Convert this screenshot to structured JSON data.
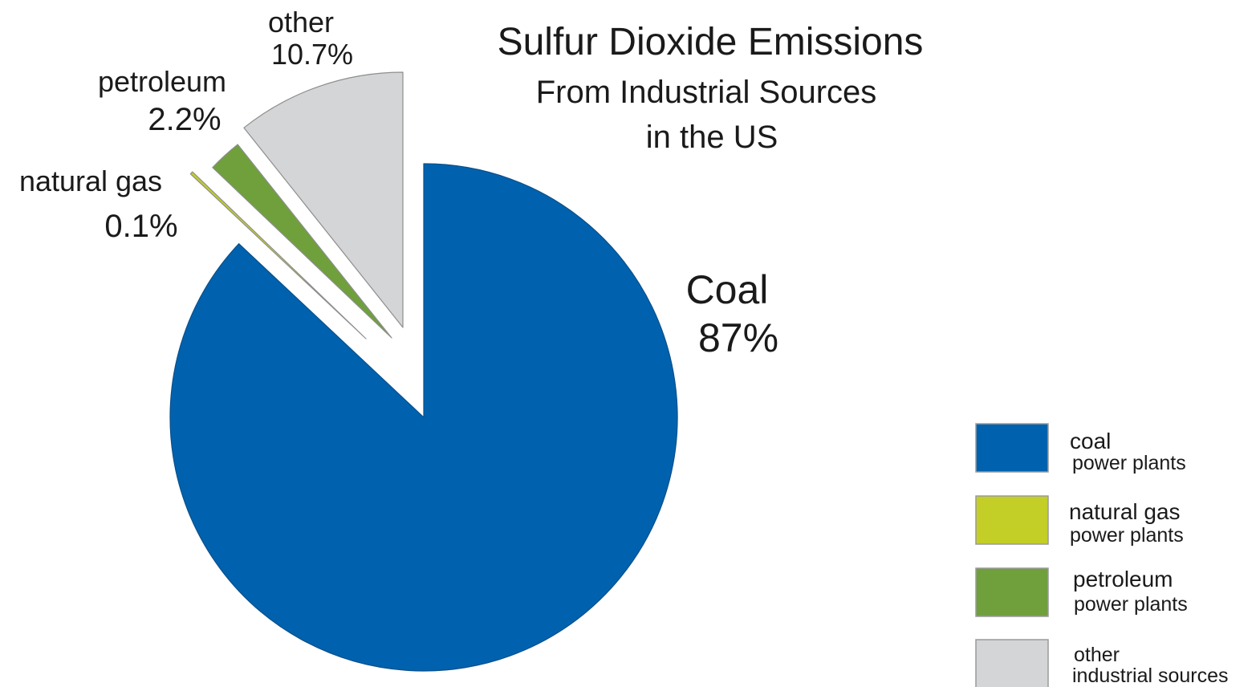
{
  "chart_data": {
    "type": "pie",
    "title": "Sulfur Dioxide Emissions",
    "subtitle_lines": [
      "From Industrial Sources",
      "in the US"
    ],
    "slices": [
      {
        "key": "coal",
        "label": "Coal",
        "value": 87,
        "value_label": "87%",
        "color": "#0062ae",
        "legend_main": "coal",
        "legend_sub": "power plants",
        "exploded": false
      },
      {
        "key": "natural_gas",
        "label": "natural gas",
        "value": 0.1,
        "value_label": "0.1%",
        "color": "#c3cf27",
        "legend_main": "natural gas",
        "legend_sub": "power plants",
        "exploded": true
      },
      {
        "key": "petroleum",
        "label": "petroleum",
        "value": 2.2,
        "value_label": "2.2%",
        "color": "#6fa03c",
        "legend_main": "petroleum",
        "legend_sub": "power plants",
        "exploded": true
      },
      {
        "key": "other",
        "label": "other",
        "value": 10.7,
        "value_label": "10.7%",
        "color": "#d4d5d7",
        "legend_main": "other",
        "legend_sub": "industrial sources",
        "exploded": true
      }
    ],
    "legend_position": "bottom-right"
  }
}
